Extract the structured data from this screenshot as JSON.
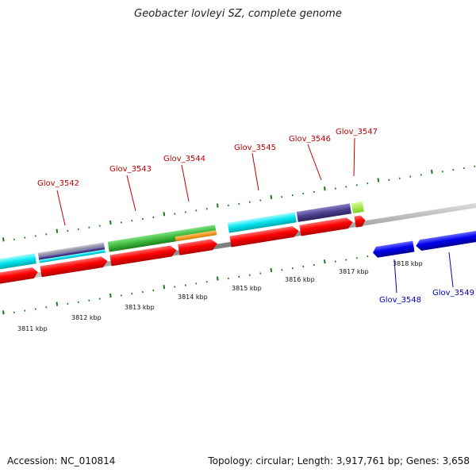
{
  "title": "Geobacter lovleyi SZ, complete genome",
  "footer": {
    "accession": "Accession: NC_010814",
    "topology": "Topology: circular; Length: 3,917,761 bp; Genes: 3,658"
  },
  "scale_labels": [
    "3811 kbp",
    "3812 kbp",
    "3813 kbp",
    "3814 kbp",
    "3815 kbp",
    "3816 kbp",
    "3817 kbp",
    "3818 kbp"
  ],
  "genes_forward": [
    "Glov_3542",
    "Glov_3543",
    "Glov_3544",
    "Glov_3545",
    "Glov_3546",
    "Glov_3547"
  ],
  "genes_reverse": [
    "Glov_3548",
    "Glov_3549"
  ],
  "colors": {
    "gene_forward": "#ff0000",
    "gene_reverse": "#0000ff",
    "label_forward": "#c00000",
    "label_reverse": "#0000c0",
    "tick": "#1a7a1a",
    "backbone": "#8c8c8c",
    "cyan": "#00e5ee",
    "green": "#3cb83c",
    "orange": "#ff9900",
    "purple": "#4a3f8c",
    "lime": "#a8f040"
  }
}
